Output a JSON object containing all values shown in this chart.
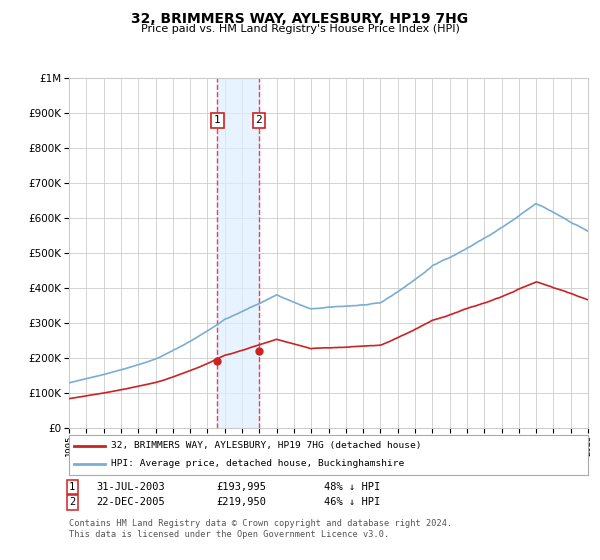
{
  "title": "32, BRIMMERS WAY, AYLESBURY, HP19 7HG",
  "subtitle": "Price paid vs. HM Land Registry's House Price Index (HPI)",
  "yticks": [
    0,
    100000,
    200000,
    300000,
    400000,
    500000,
    600000,
    700000,
    800000,
    900000,
    1000000
  ],
  "xmin": 1995,
  "xmax": 2025,
  "ymin": 0,
  "ymax": 1000000,
  "transaction1_x": 2003.58,
  "transaction1_y": 193995,
  "transaction2_x": 2005.98,
  "transaction2_y": 219950,
  "transaction1_date": "31-JUL-2003",
  "transaction1_price": "£193,995",
  "transaction1_hpi": "48% ↓ HPI",
  "transaction2_date": "22-DEC-2005",
  "transaction2_price": "£219,950",
  "transaction2_hpi": "46% ↓ HPI",
  "hpi_color": "#7aadd4",
  "price_color": "#cc2222",
  "vline_color": "#ee4444",
  "shade_color": "#ddeeff",
  "legend_label_price": "32, BRIMMERS WAY, AYLESBURY, HP19 7HG (detached house)",
  "legend_label_hpi": "HPI: Average price, detached house, Buckinghamshire",
  "footer": "Contains HM Land Registry data © Crown copyright and database right 2024.\nThis data is licensed under the Open Government Licence v3.0.",
  "background_color": "#ffffff",
  "grid_color": "#cccccc"
}
